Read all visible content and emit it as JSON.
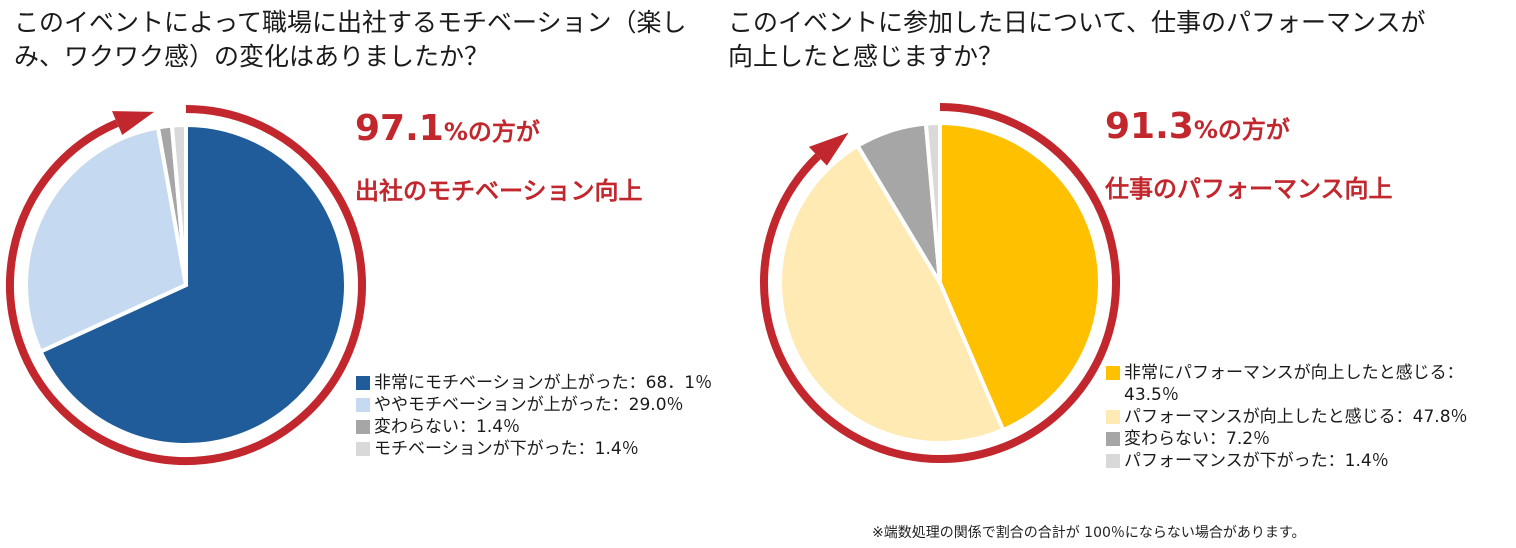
{
  "colors": {
    "accent_red": "#c1272d",
    "blue_dark": "#1f5c99",
    "blue_light": "#c5daf0",
    "gold": "#ffc000",
    "gold_light": "#ffeab3",
    "gray_mid": "#a6a6a6",
    "gray_light": "#d9d9d9"
  },
  "charts": [
    {
      "title_lines": [
        "このイベントによって職場に出社するモチベーション（楽し",
        "み、ワクワク感）の変化はありましたか？"
      ],
      "callout": {
        "percent": "97.1",
        "suffix": "%の方が",
        "line2": "出社のモチベーション向上"
      },
      "legend": [
        {
          "label": "非常にモチベーションが上がった：68．1％",
          "color": "#1f5c99"
        },
        {
          "label": "ややモチベーションが上がった：29.0％",
          "color": "#c5daf0"
        },
        {
          "label": "変わらない：1.4％",
          "color": "#a6a6a6"
        },
        {
          "label": "モチベーションが下がった：1.4％",
          "color": "#d9d9d9"
        }
      ]
    },
    {
      "title_lines": [
        "このイベントに参加した日について、仕事のパフォーマンスが",
        "向上したと感じますか？"
      ],
      "callout": {
        "percent": "91.3",
        "suffix": "%の方が",
        "line2": "仕事のパフォーマンス向上"
      },
      "legend": [
        {
          "label": "非常にパフォーマンスが向上したと感じる：43.5％",
          "color": "#ffc000"
        },
        {
          "label": "パフォーマンスが向上したと感じる：47.8％",
          "color": "#ffeab3"
        },
        {
          "label": "変わらない：7.2％",
          "color": "#a6a6a6"
        },
        {
          "label": "パフォーマンスが下がった：1.4％",
          "color": "#d9d9d9"
        }
      ]
    }
  ],
  "chart_data": [
    {
      "type": "pie",
      "categories": [
        "非常にモチベーションが上がった",
        "ややモチベーションが上がった",
        "変わらない",
        "モチベーションが下がった"
      ],
      "values": [
        68.1,
        29.0,
        1.4,
        1.4
      ],
      "colors": [
        "#1f5c99",
        "#c5daf0",
        "#a6a6a6",
        "#d9d9d9"
      ],
      "highlight_arc_percent": 97.1,
      "legend_position": "bottom-right"
    },
    {
      "type": "pie",
      "categories": [
        "非常にパフォーマンスが向上したと感じる",
        "パフォーマンスが向上したと感じる",
        "変わらない",
        "パフォーマンスが下がった"
      ],
      "values": [
        43.5,
        47.8,
        7.2,
        1.4
      ],
      "colors": [
        "#ffc000",
        "#ffeab3",
        "#a6a6a6",
        "#d9d9d9"
      ],
      "highlight_arc_percent": 91.3,
      "legend_position": "bottom-right"
    }
  ],
  "footnote": "※端数処理の関係で割合の合計が 100％にならない場合があります。"
}
